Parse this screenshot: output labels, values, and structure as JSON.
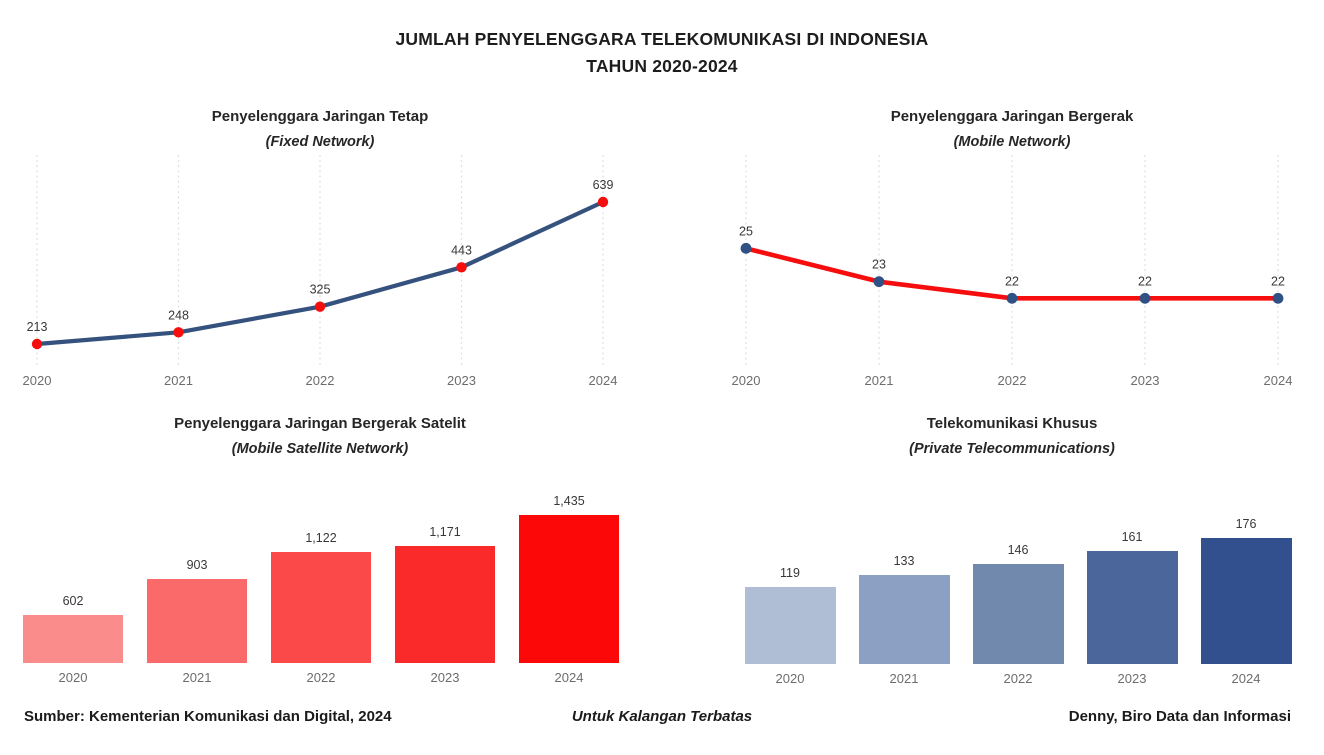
{
  "header": {
    "title_line1": "JUMLAH PENYELENGGARA TELEKOMUNIKASI DI INDONESIA",
    "title_line2": "TAHUN 2020-2024"
  },
  "chart_data": [
    {
      "key": "fixed-network",
      "type": "line",
      "title": "Penyelenggara Jaringan Tetap",
      "subtitle": "(Fixed Network)",
      "categories": [
        "2020",
        "2021",
        "2022",
        "2023",
        "2024"
      ],
      "values": [
        213,
        248,
        325,
        443,
        639
      ],
      "value_labels": [
        "213",
        "248",
        "325",
        "443",
        "639"
      ],
      "ylim": [
        150,
        750
      ],
      "grid": "vertical-dotted",
      "legend": "none",
      "line_color": "#35517D",
      "marker_color": "#F60D0D"
    },
    {
      "key": "mobile-network",
      "type": "line",
      "title": "Penyelenggara Jaringan Bergerak",
      "subtitle": "(Mobile Network)",
      "categories": [
        "2020",
        "2021",
        "2022",
        "2023",
        "2024"
      ],
      "values": [
        25,
        23,
        22,
        22,
        22
      ],
      "value_labels": [
        "25",
        "23",
        "22",
        "22",
        "22"
      ],
      "ylim": [
        18,
        30
      ],
      "grid": "vertical-dotted",
      "legend": "none",
      "line_color": "#F60D0D",
      "marker_color": "#2F5184"
    },
    {
      "key": "mobile-satellite-network",
      "type": "bar",
      "title": "Penyelenggara Jaringan Bergerak Satelit",
      "subtitle": "(Mobile Satellite Network)",
      "categories": [
        "2020",
        "2021",
        "2022",
        "2023",
        "2024"
      ],
      "values": [
        602,
        903,
        1122,
        1171,
        1435
      ],
      "value_labels": [
        "602",
        "903",
        "1,122",
        "1,171",
        "1,435"
      ],
      "ylim": [
        200,
        1450
      ],
      "grid": "off",
      "legend": "none",
      "bar_colors": [
        "#FB8C8C",
        "#FB6A6A",
        "#FB4848",
        "#FA2A2A",
        "#FD0808"
      ]
    },
    {
      "key": "private-telecommunications",
      "type": "bar",
      "title": "Telekomunikasi Khusus",
      "subtitle": "(Private Telecommunications)",
      "categories": [
        "2020",
        "2021",
        "2022",
        "2023",
        "2024"
      ],
      "values": [
        119,
        133,
        146,
        161,
        176
      ],
      "value_labels": [
        "119",
        "133",
        "146",
        "161",
        "176"
      ],
      "ylim": [
        29,
        181
      ],
      "grid": "off",
      "legend": "none",
      "bar_colors": [
        "#AFBDD5",
        "#8BA0C2",
        "#7289AE",
        "#4A669B",
        "#31508D"
      ]
    }
  ],
  "style": {
    "gridline_color": "#D8D8D8",
    "tick_label_color": "#6D6D6D",
    "value_label_color": "#383838"
  },
  "footer": {
    "source": "Sumber: Kementerian Komunikasi dan Digital, 2024",
    "classification": "Untuk Kalangan Terbatas",
    "credit": "Denny, Biro Data dan Informasi"
  }
}
